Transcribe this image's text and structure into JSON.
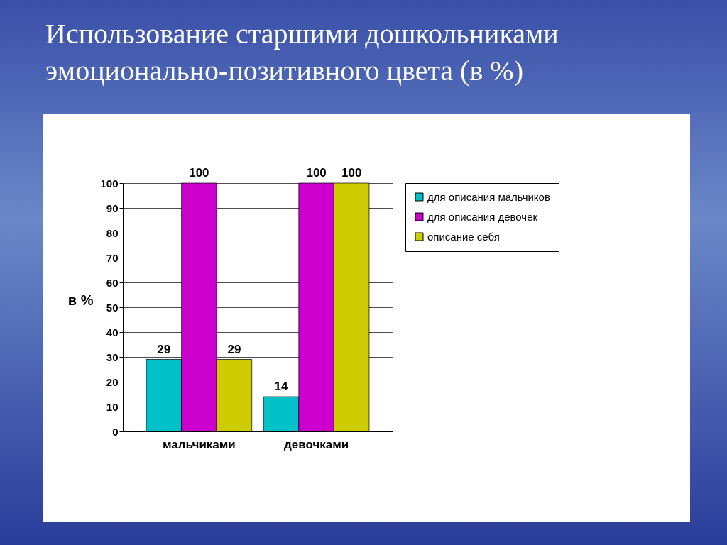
{
  "chart_data": {
    "type": "bar",
    "title": "Использование старшими дошкольниками эмоционально-позитивного цвета (в %)",
    "categories": [
      "мальчиками",
      "девочками"
    ],
    "series": [
      {
        "name": "для описания мальчиков",
        "color": "#00c0c8",
        "values": [
          29,
          14
        ]
      },
      {
        "name": "для описания девочек",
        "color": "#cc00cc",
        "values": [
          100,
          100
        ]
      },
      {
        "name": "описание себя",
        "color": "#cccc00",
        "values": [
          29,
          100
        ]
      }
    ],
    "ylabel": "в %",
    "ylim": [
      0,
      100
    ],
    "yticks": [
      0,
      10,
      20,
      30,
      40,
      50,
      60,
      70,
      80,
      90,
      100
    ],
    "grid": "y",
    "legend": "right",
    "data_labels": true
  }
}
